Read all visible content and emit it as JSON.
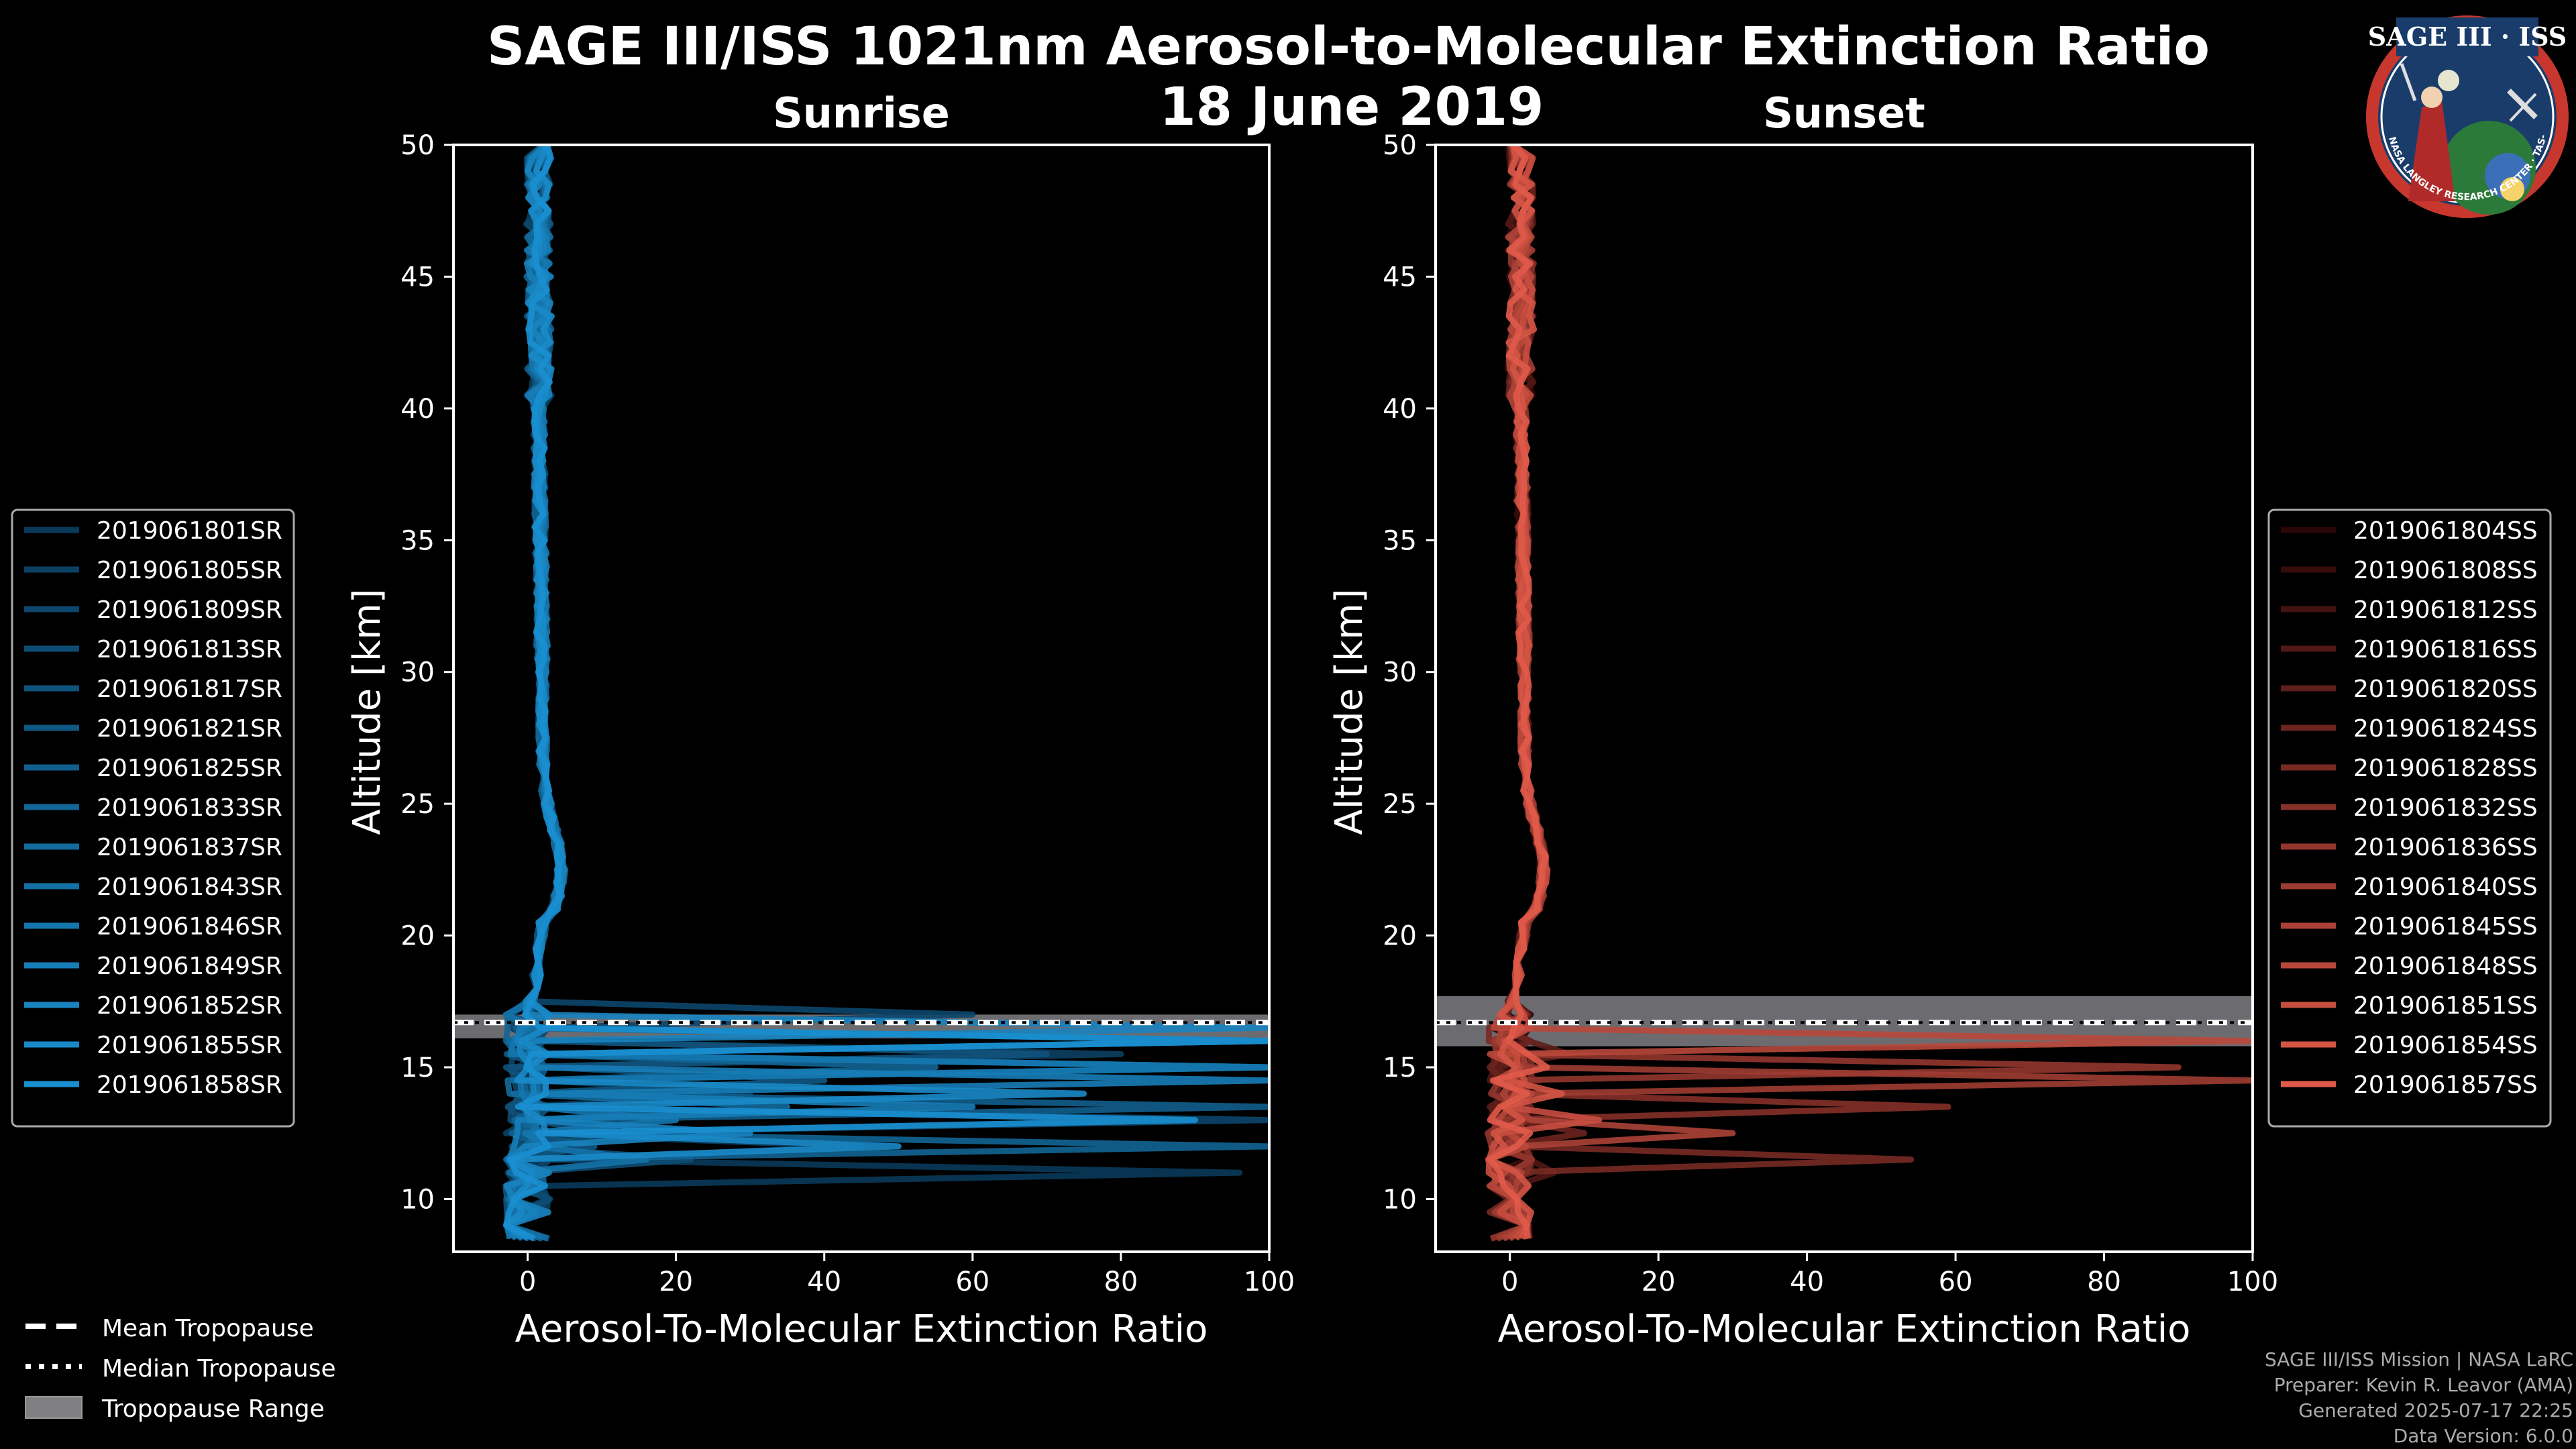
{
  "header": {
    "title_line1": "SAGE III/ISS 1021nm Aerosol-to-Molecular Extinction Ratio",
    "title_line2": "18 June 2019"
  },
  "badge": {
    "label": "SAGE III · ISS",
    "ring_text": "BALL · NASA LANGLEY RESEARCH CENTER · TAS-I · ESA"
  },
  "global_legend": {
    "mean_tropopause": "Mean Tropopause",
    "median_tropopause": "Median Tropopause",
    "tropopause_range": "Tropopause Range"
  },
  "footer": {
    "line1": "SAGE III/ISS Mission | NASA LaRC",
    "line2": "Preparer: Kevin R. Leavor (AMA)",
    "line3": "Generated 2025-07-17 22:25",
    "line4": "Data Version: 6.0.0"
  },
  "chart_data": [
    {
      "type": "line",
      "subtitle": "Sunrise",
      "xlabel": "Aerosol-To-Molecular Extinction Ratio",
      "ylabel": "Altitude [km]",
      "xlim": [
        -10,
        100
      ],
      "ylim": [
        8,
        50
      ],
      "xticks": [
        0,
        20,
        40,
        60,
        80,
        100
      ],
      "yticks": [
        10,
        15,
        20,
        25,
        30,
        35,
        40,
        45,
        50
      ],
      "legend_position": "left",
      "tropopause": {
        "mean": 16.7,
        "median": 16.7,
        "range": [
          16.1,
          17.0
        ]
      },
      "series_color_dark": "#0a3a5a",
      "series_color_light": "#1a8fd0",
      "series": [
        {
          "name": "2019061801SR",
          "peaks": [
            [
              11.2,
              96
            ],
            [
              14.2,
              30
            ]
          ]
        },
        {
          "name": "2019061805SR",
          "peaks": [
            [
              12.2,
              45
            ],
            [
              15.6,
              80
            ]
          ]
        },
        {
          "name": "2019061809SR",
          "peaks": [
            [
              13.0,
              100
            ],
            [
              17.0,
              60
            ]
          ]
        },
        {
          "name": "2019061813SR",
          "peaks": [
            [
              11.6,
              22
            ],
            [
              14.8,
              100
            ]
          ]
        },
        {
          "name": "2019061817SR",
          "peaks": [
            [
              12.6,
              14
            ],
            [
              15.3,
              70
            ]
          ]
        },
        {
          "name": "2019061821SR",
          "peaks": [
            [
              11.9,
              9
            ],
            [
              14.6,
              40
            ]
          ]
        },
        {
          "name": "2019061825SR",
          "peaks": [
            [
              13.3,
              100
            ],
            [
              16.2,
              100
            ]
          ]
        },
        {
          "name": "2019061833SR",
          "peaks": [
            [
              12.0,
              100
            ],
            [
              15.0,
              55
            ]
          ]
        },
        {
          "name": "2019061837SR",
          "peaks": [
            [
              13.7,
              35
            ],
            [
              14.9,
              100
            ]
          ]
        },
        {
          "name": "2019061843SR",
          "peaks": [
            [
              11.4,
              16
            ],
            [
              16.0,
              100
            ]
          ]
        },
        {
          "name": "2019061846SR",
          "peaks": [
            [
              12.8,
              20
            ],
            [
              15.1,
              100
            ]
          ]
        },
        {
          "name": "2019061849SR",
          "peaks": [
            [
              13.5,
              60
            ],
            [
              14.4,
              100
            ]
          ]
        },
        {
          "name": "2019061852SR",
          "peaks": [
            [
              12.4,
              30
            ],
            [
              16.5,
              100
            ]
          ]
        },
        {
          "name": "2019061855SR",
          "peaks": [
            [
              11.8,
              50
            ],
            [
              14.0,
              75
            ]
          ]
        },
        {
          "name": "2019061858SR",
          "peaks": [
            [
              13.1,
              90
            ],
            [
              15.8,
              100
            ]
          ]
        }
      ]
    },
    {
      "type": "line",
      "subtitle": "Sunset",
      "xlabel": "Aerosol-To-Molecular Extinction Ratio",
      "ylabel": "Altitude [km]",
      "xlim": [
        -10,
        100
      ],
      "ylim": [
        8,
        50
      ],
      "xticks": [
        0,
        20,
        40,
        60,
        80,
        100
      ],
      "yticks": [
        10,
        15,
        20,
        25,
        30,
        35,
        40,
        45,
        50
      ],
      "legend_position": "right",
      "tropopause": {
        "mean": 16.7,
        "median": 16.7,
        "range": [
          15.8,
          17.7
        ]
      },
      "series_color_dark": "#2a0606",
      "series_color_light": "#e05a4a",
      "series": [
        {
          "name": "2019061804SS",
          "peaks": [
            [
              12.0,
              3
            ]
          ]
        },
        {
          "name": "2019061808SS",
          "peaks": [
            [
              13.0,
              5
            ]
          ]
        },
        {
          "name": "2019061812SS",
          "peaks": [
            [
              14.5,
              4
            ]
          ]
        },
        {
          "name": "2019061816SS",
          "peaks": [
            [
              11.0,
              6
            ]
          ]
        },
        {
          "name": "2019061820SS",
          "peaks": [
            [
              15.5,
              8
            ]
          ]
        },
        {
          "name": "2019061824SS",
          "peaks": [
            [
              12.5,
              10
            ]
          ]
        },
        {
          "name": "2019061828SS",
          "peaks": [
            [
              11.5,
              54
            ]
          ]
        },
        {
          "name": "2019061832SS",
          "peaks": [
            [
              13.6,
              59
            ]
          ]
        },
        {
          "name": "2019061836SS",
          "peaks": [
            [
              15.0,
              90
            ]
          ]
        },
        {
          "name": "2019061840SS",
          "peaks": [
            [
              14.7,
              100
            ]
          ]
        },
        {
          "name": "2019061845SS",
          "peaks": [
            [
              12.3,
              30
            ]
          ]
        },
        {
          "name": "2019061848SS",
          "peaks": [
            [
              15.8,
              100
            ]
          ]
        },
        {
          "name": "2019061851SS",
          "peaks": [
            [
              13.2,
              12
            ]
          ]
        },
        {
          "name": "2019061854SS",
          "peaks": [
            [
              14.0,
              7
            ]
          ]
        },
        {
          "name": "2019061857SS",
          "peaks": [
            [
              15.2,
              5
            ]
          ]
        }
      ]
    }
  ]
}
